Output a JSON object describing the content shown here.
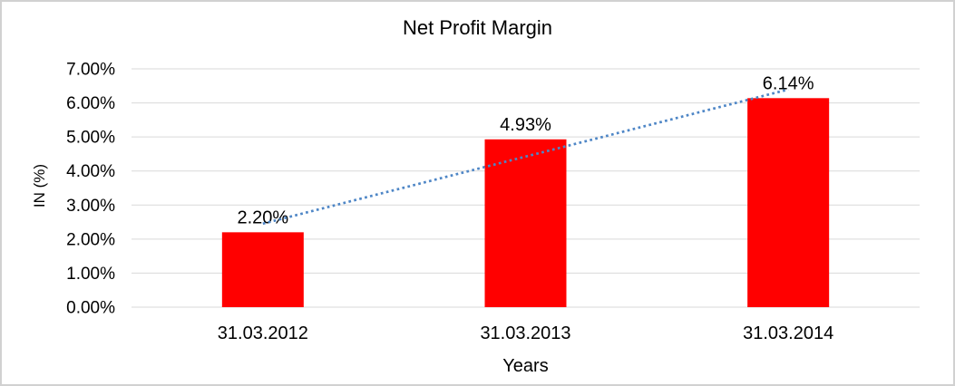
{
  "chart": {
    "title": "Net Profit Margin",
    "xlabel": "Years",
    "ylabel": "IN (%)"
  },
  "chart_data": {
    "type": "bar",
    "title": "Net Profit Margin",
    "xlabel": "Years",
    "ylabel": "IN (%)",
    "categories": [
      "31.03.2012",
      "31.03.2013",
      "31.03.2014"
    ],
    "values": [
      2.2,
      4.93,
      6.14
    ],
    "data_labels": [
      "2.20%",
      "4.93%",
      "6.14%"
    ],
    "yticks": [
      "0.00%",
      "1.00%",
      "2.00%",
      "3.00%",
      "4.00%",
      "5.00%",
      "6.00%",
      "7.00%"
    ],
    "ytick_values": [
      0,
      1,
      2,
      3,
      4,
      5,
      6,
      7
    ],
    "ylim": [
      0,
      7
    ],
    "grid": true,
    "legend": "none",
    "bar_color": "#FF0000",
    "gridline_color": "#D9D9D9",
    "trendline": {
      "type": "linear",
      "style": "dotted",
      "color": "#4E86C6"
    }
  }
}
